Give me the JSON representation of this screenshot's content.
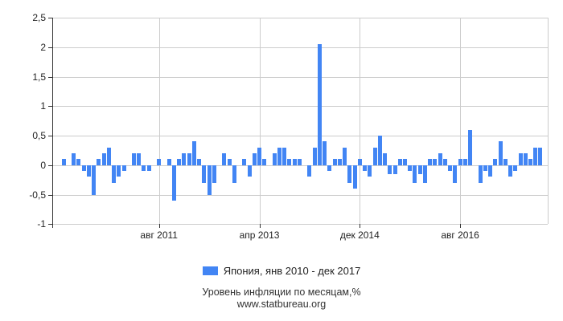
{
  "chart_data": {
    "type": "bar",
    "title": "",
    "bar_color": "#4285f4",
    "grid": true,
    "x_range": {
      "start": "янв 2010",
      "end": "дек 2017",
      "period": "monthly",
      "n_months": 96
    },
    "ylim": [
      -1,
      2.5
    ],
    "y_axis": {
      "ticks": [
        {
          "label": "2,5",
          "value": 2.5
        },
        {
          "label": "2",
          "value": 2
        },
        {
          "label": "1,5",
          "value": 1.5
        },
        {
          "label": "1",
          "value": 1
        },
        {
          "label": "0,5",
          "value": 0.5
        },
        {
          "label": "0",
          "value": 0
        },
        {
          "label": "-0,5",
          "value": -0.5
        },
        {
          "label": "-1",
          "value": -1
        }
      ]
    },
    "x_axis": {
      "ticks": [
        {
          "label": "авг 2011",
          "month_index": 19
        },
        {
          "label": "апр 2013",
          "month_index": 39
        },
        {
          "label": "дек 2014",
          "month_index": 59
        },
        {
          "label": "авг 2016",
          "month_index": 79
        }
      ]
    },
    "series": [
      {
        "name": "Япония",
        "values": [
          0.1,
          0,
          0.2,
          0.1,
          -0.1,
          -0.2,
          -0.5,
          0.1,
          0.2,
          0.3,
          -0.3,
          -0.2,
          -0.1,
          0,
          0.2,
          0.2,
          -0.1,
          -0.1,
          0,
          0.1,
          0,
          0.1,
          -0.6,
          0.1,
          0.2,
          0.2,
          0.4,
          0.1,
          -0.3,
          -0.5,
          -0.3,
          0,
          0.2,
          0.1,
          -0.3,
          0,
          0.1,
          -0.2,
          0.2,
          0.3,
          0.1,
          0,
          0.2,
          0.3,
          0.3,
          0.1,
          0.1,
          0.1,
          0,
          -0.2,
          0.3,
          2.05,
          0.4,
          -0.1,
          0.1,
          0.1,
          0.3,
          -0.3,
          -0.4,
          0.1,
          -0.1,
          -0.2,
          0.3,
          0.5,
          0.2,
          -0.15,
          -0.15,
          0.1,
          0.1,
          -0.1,
          -0.3,
          -0.15,
          -0.3,
          0.1,
          0.1,
          0.2,
          0.1,
          -0.1,
          -0.3,
          0.1,
          0.1,
          0.6,
          0,
          -0.3,
          -0.1,
          -0.2,
          0.1,
          0.4,
          0.1,
          -0.2,
          -0.1,
          0.2,
          0.2,
          0.1,
          0.3,
          0.3
        ]
      }
    ],
    "legend": {
      "position": "bottom",
      "label": "Япония, янв 2010 - дек 2017"
    }
  },
  "footer": {
    "line1": "Уровень инфляции по месяцам,%",
    "line2": "www.statbureau.org"
  }
}
